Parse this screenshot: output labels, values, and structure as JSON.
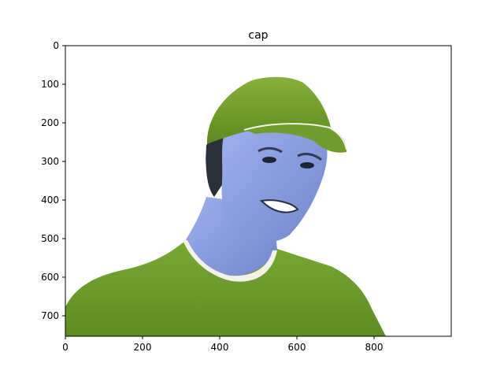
{
  "figure": {
    "title": "cap",
    "xticks": [
      "0",
      "200",
      "400",
      "600",
      "800"
    ],
    "yticks": [
      "0",
      "100",
      "200",
      "300",
      "400",
      "500",
      "600",
      "700"
    ],
    "xlim": [
      0,
      1000
    ],
    "ylim": [
      0,
      750
    ]
  },
  "colors": {
    "background": "#ffffff",
    "axes_frame": "#000000",
    "shirt": "#6f9c2d",
    "cap": "#76a12a",
    "skin": "#8a9fe0",
    "hair": "#2b2f3a"
  }
}
